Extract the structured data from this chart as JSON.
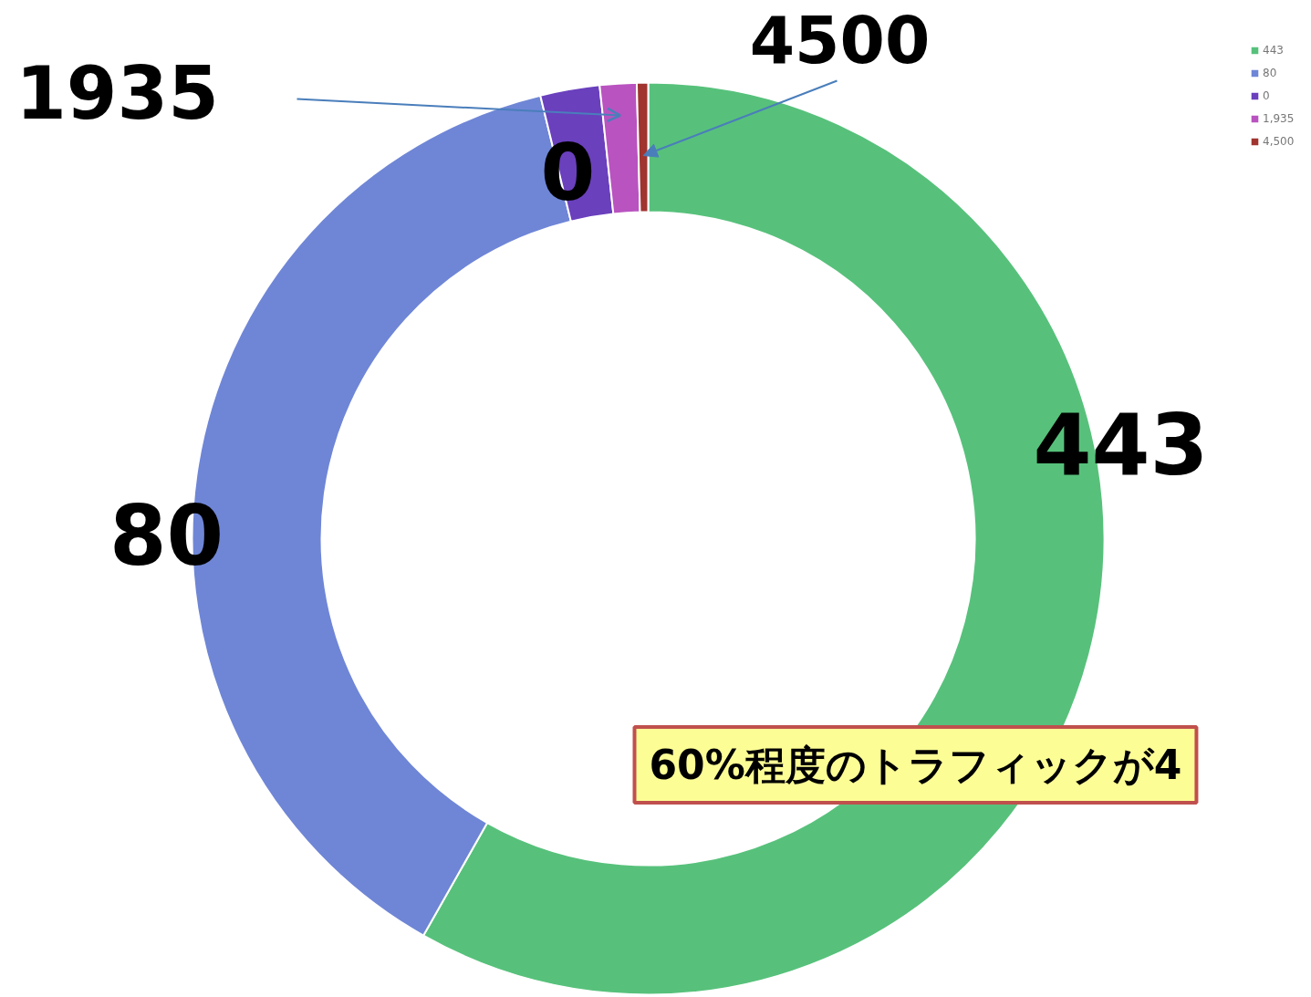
{
  "chart_data": {
    "type": "donut",
    "categories": [
      "443",
      "80",
      "0",
      "1,935",
      "4,500"
    ],
    "values": [
      58.2,
      38,
      2.1,
      1.3,
      0.4
    ],
    "colors": [
      "#57c17b",
      "#6f86d6",
      "#6a40bd",
      "#b953c0",
      "#a0342f"
    ],
    "legend": "top right",
    "annotations": [
      "443",
      "80",
      "0",
      "1935",
      "4500",
      "60%程度のトラフィックが4"
    ]
  }
}
